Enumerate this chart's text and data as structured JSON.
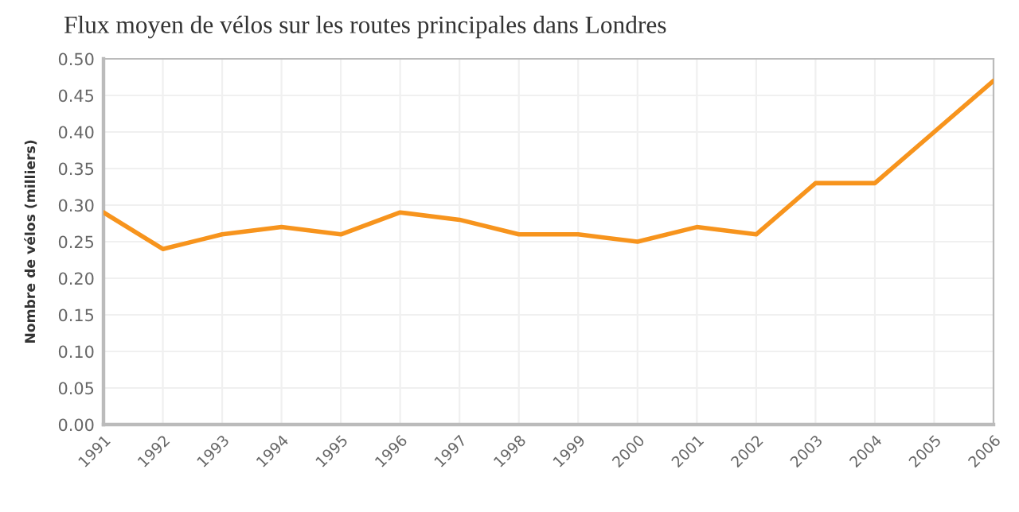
{
  "chart_data": {
    "type": "line",
    "title": "Flux moyen de vélos sur les routes principales dans Londres",
    "ylabel": "Nombre de vélos (milliers)",
    "x": [
      1991,
      1992,
      1993,
      1994,
      1995,
      1996,
      1997,
      1998,
      1999,
      2000,
      2001,
      2002,
      2003,
      2004,
      2005,
      2006
    ],
    "series": [
      {
        "color": "#f7941d",
        "values": [
          0.29,
          0.24,
          0.26,
          0.27,
          0.26,
          0.29,
          0.28,
          0.26,
          0.26,
          0.25,
          0.27,
          0.26,
          0.33,
          0.33,
          0.4,
          0.47
        ]
      }
    ],
    "xlim": [
      1991,
      2006
    ],
    "xticks": [
      1991,
      1992,
      1993,
      1994,
      1995,
      1996,
      1997,
      1998,
      1999,
      2000,
      2001,
      2002,
      2003,
      2004,
      2005,
      2006
    ],
    "ylim": [
      0,
      0.5
    ],
    "yticks": [
      {
        "value": 0,
        "label": "0.00"
      },
      {
        "value": 0.05,
        "label": "0.05"
      },
      {
        "value": 0.1,
        "label": "0.10"
      },
      {
        "value": 0.15,
        "label": "0.15"
      },
      {
        "value": 0.2,
        "label": "0.20"
      },
      {
        "value": 0.25,
        "label": "0.25"
      },
      {
        "value": 0.3,
        "label": "0.30"
      },
      {
        "value": 0.35,
        "label": "0.35"
      },
      {
        "value": 0.4,
        "label": "0.40"
      },
      {
        "value": 0.45,
        "label": "0.45"
      },
      {
        "value": 0.5,
        "label": "0.50"
      }
    ],
    "grid": true,
    "marker": "none",
    "line_style": "solid"
  }
}
